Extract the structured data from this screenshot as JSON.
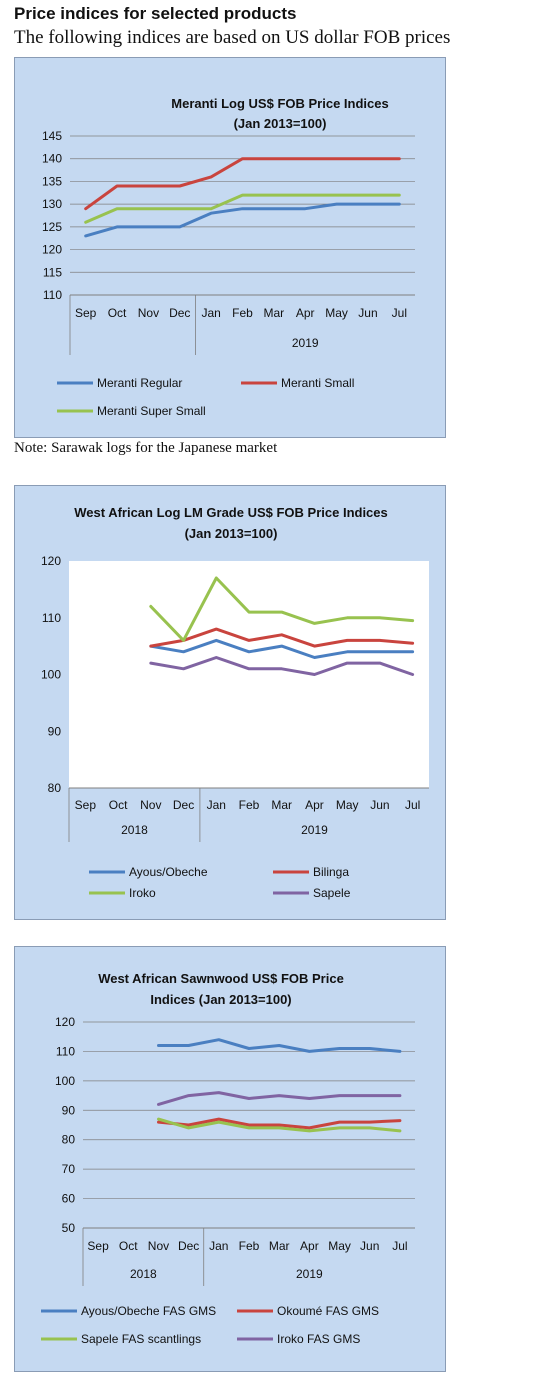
{
  "page": {
    "heading": "Price indices for selected products",
    "subheading": "The following indices are based on US dollar FOB prices",
    "note": "Note: Sarawak logs for the Japanese market"
  },
  "colors": {
    "panel_bg": "#c5d9f1",
    "plot_bg": "#ffffff",
    "blue": "#4a7fc1",
    "red": "#c9443e",
    "green": "#98c24f",
    "purple": "#8064a2"
  },
  "chart_data": [
    {
      "type": "line",
      "title": [
        "Meranti Log US$ FOB Price Indices",
        "(Jan 2013=100)"
      ],
      "categories": [
        "Sep",
        "Oct",
        "Nov",
        "Dec",
        "Jan",
        "Feb",
        "Mar",
        "Apr",
        "May",
        "Jun",
        "Jul"
      ],
      "groups": [
        {
          "label": "",
          "start": 0,
          "end": 3
        },
        {
          "label": "2019",
          "start": 4,
          "end": 10
        }
      ],
      "ylim": [
        110,
        145
      ],
      "yticks": [
        110,
        115,
        120,
        125,
        130,
        135,
        140,
        145
      ],
      "grid": true,
      "series": [
        {
          "name": "Meranti Regular",
          "color": "#4a7fc1",
          "values": [
            123,
            125,
            125,
            125,
            128,
            129,
            129,
            129,
            130,
            130,
            130
          ]
        },
        {
          "name": "Meranti Small",
          "color": "#c9443e",
          "values": [
            129,
            134,
            134,
            134,
            136,
            140,
            140,
            140,
            140,
            140,
            140
          ]
        },
        {
          "name": "Meranti Super Small",
          "color": "#98c24f",
          "values": [
            126,
            129,
            129,
            129,
            129,
            132,
            132,
            132,
            132,
            132,
            132
          ]
        }
      ]
    },
    {
      "type": "line",
      "title": [
        "West African Log LM Grade US$ FOB Price Indices",
        "(Jan 2013=100)"
      ],
      "categories": [
        "Sep",
        "Oct",
        "Nov",
        "Dec",
        "Jan",
        "Feb",
        "Mar",
        "Apr",
        "May",
        "Jun",
        "Jul"
      ],
      "groups": [
        {
          "label": "2018",
          "start": 0,
          "end": 3
        },
        {
          "label": "2019",
          "start": 4,
          "end": 10
        }
      ],
      "ylim": [
        80,
        120
      ],
      "yticks": [
        80,
        90,
        100,
        110,
        120
      ],
      "grid": false,
      "series": [
        {
          "name": "Ayous/Obeche",
          "color": "#4a7fc1",
          "values": [
            null,
            null,
            105,
            104,
            106,
            104,
            105,
            103,
            104,
            104,
            104
          ]
        },
        {
          "name": "Bilinga",
          "color": "#c9443e",
          "values": [
            null,
            null,
            105,
            106,
            108,
            106,
            107,
            105,
            106,
            106,
            105.5
          ]
        },
        {
          "name": "Iroko",
          "color": "#98c24f",
          "values": [
            null,
            null,
            112,
            106,
            117,
            111,
            111,
            109,
            110,
            110,
            109.5
          ]
        },
        {
          "name": "Sapele",
          "color": "#8064a2",
          "values": [
            null,
            null,
            102,
            101,
            103,
            101,
            101,
            100,
            102,
            102,
            100
          ]
        }
      ]
    },
    {
      "type": "line",
      "title": [
        "West African Sawnwood US$ FOB Price",
        "Indices (Jan 2013=100)"
      ],
      "categories": [
        "Sep",
        "Oct",
        "Nov",
        "Dec",
        "Jan",
        "Feb",
        "Mar",
        "Apr",
        "May",
        "Jun",
        "Jul"
      ],
      "groups": [
        {
          "label": "2018",
          "start": 0,
          "end": 3
        },
        {
          "label": "2019",
          "start": 4,
          "end": 10
        }
      ],
      "ylim": [
        50,
        120
      ],
      "yticks": [
        50,
        60,
        70,
        80,
        90,
        100,
        110,
        120
      ],
      "grid": true,
      "series": [
        {
          "name": "Ayous/Obeche FAS GMS",
          "color": "#4a7fc1",
          "values": [
            null,
            null,
            112,
            112,
            114,
            111,
            112,
            110,
            111,
            111,
            110
          ]
        },
        {
          "name": "Okoumé FAS GMS",
          "color": "#c9443e",
          "values": [
            null,
            null,
            86,
            85,
            87,
            85,
            85,
            84,
            86,
            86,
            86.5
          ]
        },
        {
          "name": "Sapele FAS scantlings",
          "color": "#98c24f",
          "values": [
            null,
            null,
            87,
            84,
            86,
            84,
            84,
            83,
            84,
            84,
            83
          ]
        },
        {
          "name": "Iroko FAS GMS",
          "color": "#8064a2",
          "values": [
            null,
            null,
            92,
            95,
            96,
            94,
            95,
            94,
            95,
            95,
            95
          ]
        }
      ]
    }
  ]
}
